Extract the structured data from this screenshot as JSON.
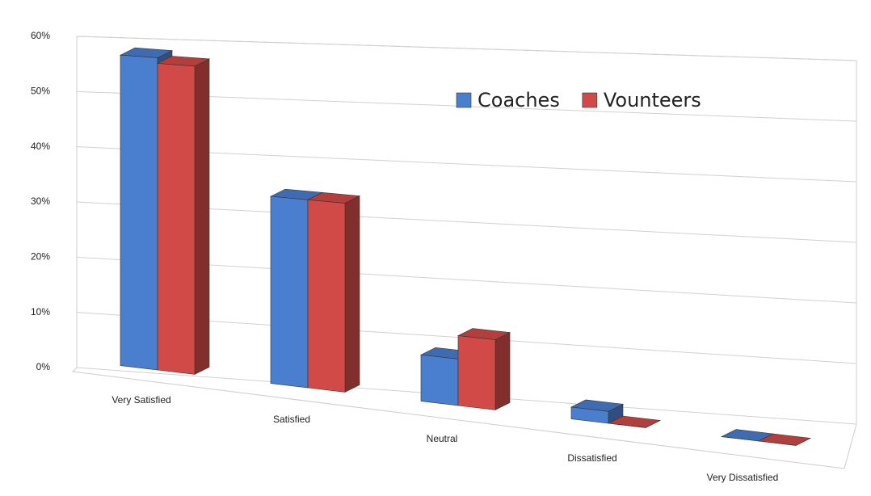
{
  "chart_data": {
    "type": "bar3d",
    "categories": [
      "Very Satisfied",
      "Satisfied",
      "Neutral",
      "Dissatisfied",
      "Very Dissatisfied"
    ],
    "series": [
      {
        "name": "Coaches",
        "color": "#4a7fcf",
        "values": [
          56,
          33,
          8,
          2,
          0
        ]
      },
      {
        "name": "Vounteers",
        "color": "#d24a48",
        "values": [
          55,
          33,
          12,
          0,
          0
        ]
      }
    ],
    "ylim": [
      0,
      60
    ],
    "yticks": [
      {
        "value": 0,
        "label": "0%"
      },
      {
        "value": 10,
        "label": "10%"
      },
      {
        "value": 20,
        "label": "20%"
      },
      {
        "value": 30,
        "label": "30%"
      },
      {
        "value": 40,
        "label": "40%"
      },
      {
        "value": 50,
        "label": "50%"
      },
      {
        "value": 60,
        "label": "60%"
      }
    ],
    "grid": true,
    "legend": "top"
  }
}
